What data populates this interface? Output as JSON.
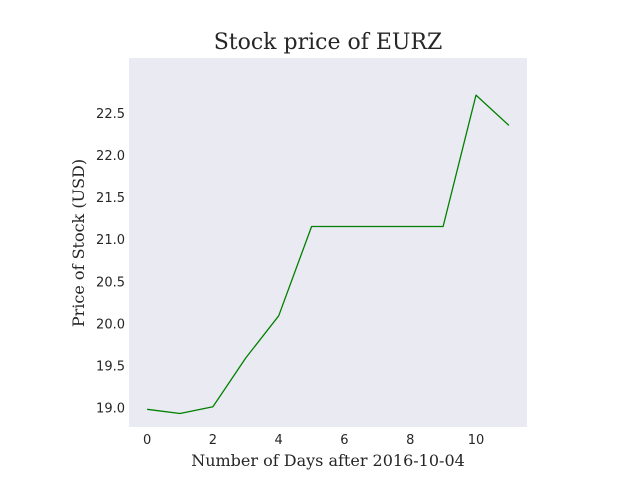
{
  "chart_data": {
    "type": "line",
    "title": "Stock price of EURZ",
    "xlabel": "Number of Days after 2016-10-04",
    "ylabel": "Price of Stock (USD)",
    "xlim": [
      -0.55,
      11.55
    ],
    "ylim": [
      18.77,
      23.15
    ],
    "x_ticks": [
      0,
      2,
      4,
      6,
      8,
      10
    ],
    "y_ticks": [
      19.0,
      19.5,
      20.0,
      20.5,
      21.0,
      21.5,
      22.0,
      22.5
    ],
    "grid": false,
    "series": [
      {
        "color": "#008000",
        "x": [
          0,
          1,
          2,
          3,
          4,
          5,
          6,
          7,
          8,
          9,
          10,
          11
        ],
        "values": [
          18.98,
          18.93,
          19.01,
          19.59,
          20.09,
          21.15,
          21.15,
          21.15,
          21.15,
          21.15,
          22.71,
          22.35
        ]
      }
    ],
    "colors": {
      "plot_background": "#eaeaf2",
      "text": "#262626"
    }
  }
}
